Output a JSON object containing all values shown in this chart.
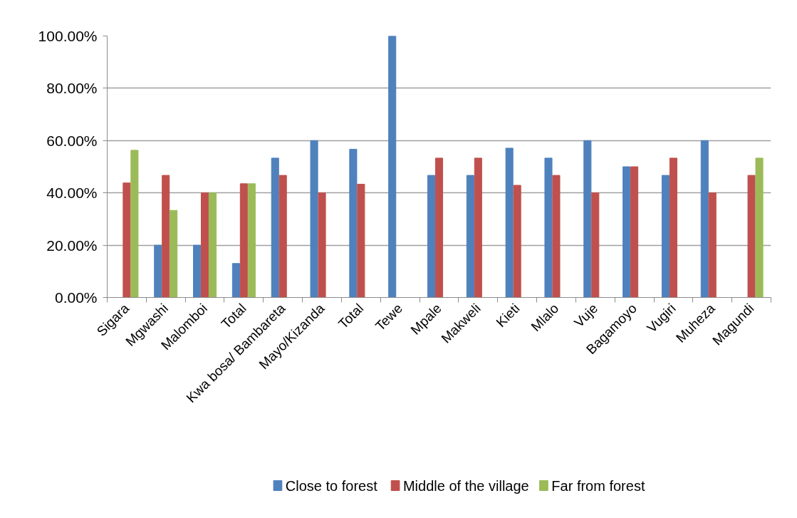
{
  "chart_data": {
    "type": "bar",
    "categories": [
      "Sigara",
      "Mgwashi",
      "Malomboi",
      "Total",
      "Kwa bosa/ Bambareta",
      "Mayo/Kizanda",
      "Total",
      "Tewe",
      "Mpale",
      "Makweli",
      "Kieti",
      "Mlalo",
      "Vuje",
      "Bagamoyo",
      "Vugiri",
      "Muheza",
      "Magundi"
    ],
    "series": [
      {
        "name": "Close to forest",
        "color": "#4f81bd",
        "values": [
          0,
          20,
          20,
          13,
          53.3,
          60,
          56.7,
          100,
          46.7,
          46.7,
          57.1,
          53.3,
          60,
          50,
          46.7,
          60,
          null
        ]
      },
      {
        "name": "Middle of the village",
        "color": "#c0504d",
        "values": [
          43.8,
          46.7,
          40,
          43.5,
          46.7,
          40,
          43.3,
          0,
          53.3,
          53.3,
          42.9,
          46.7,
          40,
          50,
          53.3,
          40,
          46.7
        ]
      },
      {
        "name": "Far from forest",
        "color": "#9bbb59",
        "values": [
          56.3,
          33.3,
          40,
          43.5,
          null,
          null,
          null,
          null,
          null,
          null,
          null,
          null,
          null,
          null,
          null,
          null,
          53.3
        ]
      }
    ],
    "ylim": [
      0,
      100
    ],
    "yticks": [
      {
        "value": 0,
        "label": "0.00%"
      },
      {
        "value": 20,
        "label": "20.00%"
      },
      {
        "value": 40,
        "label": "40.00%"
      },
      {
        "value": 60,
        "label": "60.00%"
      },
      {
        "value": 80,
        "label": "80.00%"
      },
      {
        "value": 100,
        "label": "100.00%"
      }
    ],
    "grid": "y",
    "legend": "bottom"
  }
}
